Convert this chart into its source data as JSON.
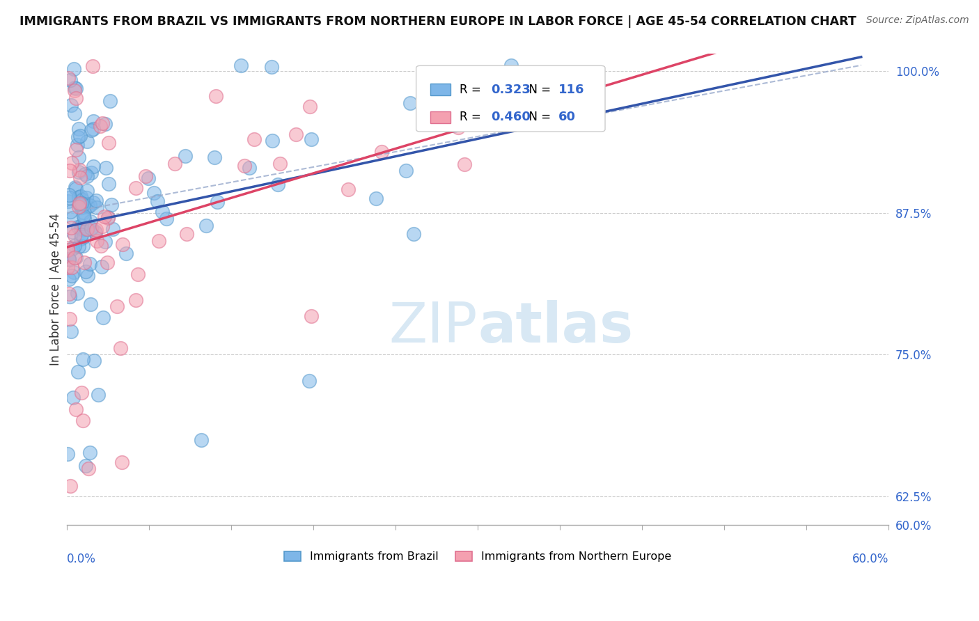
{
  "title": "IMMIGRANTS FROM BRAZIL VS IMMIGRANTS FROM NORTHERN EUROPE IN LABOR FORCE | AGE 45-54 CORRELATION CHART",
  "source": "Source: ZipAtlas.com",
  "ylabel_label": "In Labor Force | Age 45-54",
  "xlim": [
    0.0,
    60.0
  ],
  "ylim": [
    60.0,
    101.5
  ],
  "yticks": [
    60.0,
    62.5,
    75.0,
    87.5,
    100.0
  ],
  "blue_R": "0.323",
  "blue_N": "116",
  "pink_R": "0.460",
  "pink_N": "60",
  "blue_color": "#7EB6E8",
  "pink_color": "#F4A0B0",
  "blue_edge_color": "#5599CC",
  "pink_edge_color": "#E07090",
  "blue_line_color": "#3355AA",
  "pink_line_color": "#DD4466",
  "dashed_line_color": "#99AACC",
  "watermark_color": "#D8E8F4",
  "background_color": "#FFFFFF",
  "legend_label_blue": "Immigrants from Brazil",
  "legend_label_pink": "Immigrants from Northern Europe",
  "value_color": "#3366CC",
  "title_color": "#111111",
  "source_color": "#666666",
  "ylabel_color": "#333333"
}
